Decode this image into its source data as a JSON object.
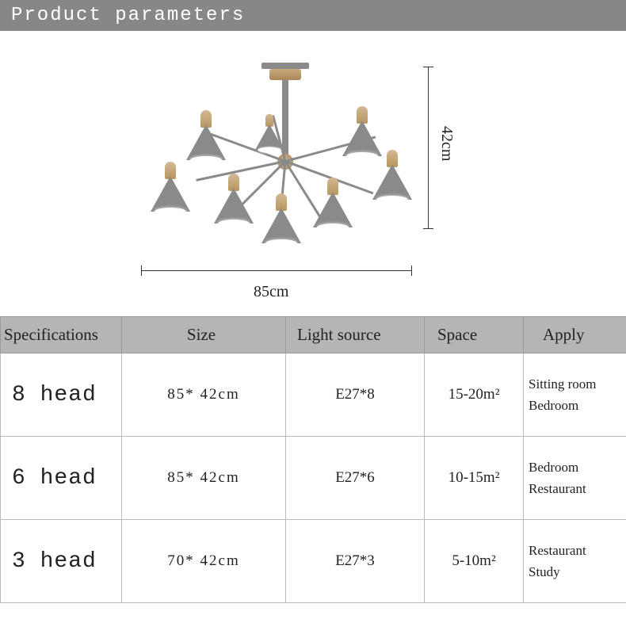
{
  "header": {
    "title": "Product parameters"
  },
  "dimensions": {
    "height_label": "42cm",
    "width_label": "85cm"
  },
  "colors": {
    "header_bg": "#878787",
    "table_header_bg": "#b5b5b5",
    "shade_gray": "#8a8a8a",
    "wood": "#c9a878",
    "border": "#bbbbbb",
    "text": "#222222"
  },
  "table": {
    "headers": {
      "spec": "Specifications",
      "size": "Size",
      "light": "Light source",
      "space": "Space",
      "apply": "Apply"
    },
    "rows": [
      {
        "spec": "8 head",
        "size": "85*  42cm",
        "light": "E27*8",
        "space": "15-20m²",
        "apply": "Sitting room\nBedroom"
      },
      {
        "spec": "6 head",
        "size": "85*  42cm",
        "light": "E27*6",
        "space": "10-15m²",
        "apply": "Bedroom\nRestaurant"
      },
      {
        "spec": "3 head",
        "size": "70*  42cm",
        "light": "E27*3",
        "space": "5-10m²",
        "apply": "Restaurant\nStudy"
      }
    ]
  }
}
